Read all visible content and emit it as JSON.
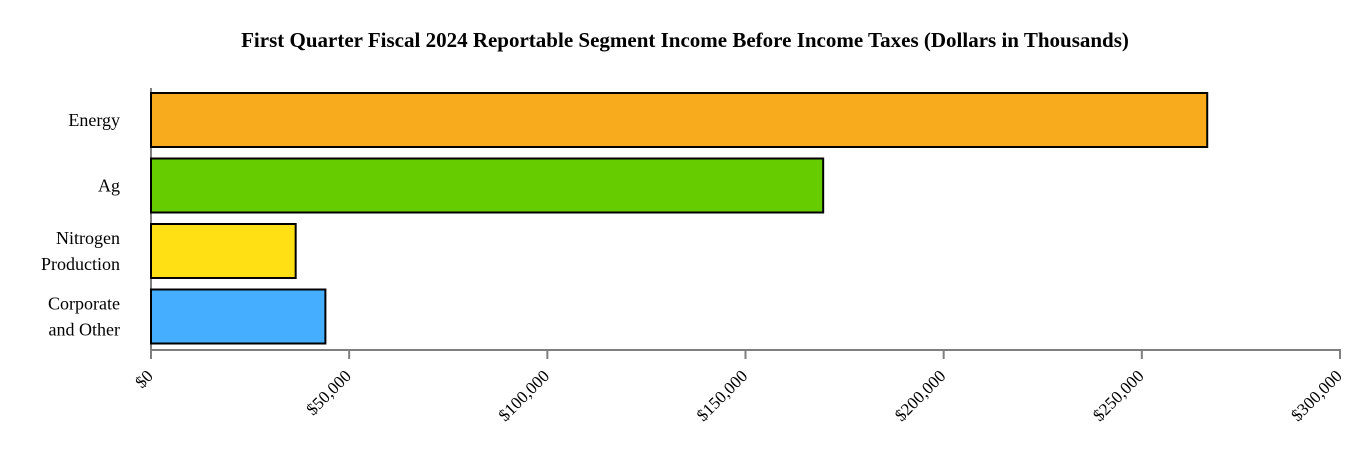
{
  "chart_data": {
    "type": "bar",
    "orientation": "horizontal",
    "title": "First Quarter Fiscal 2024 Reportable Segment Income Before Income Taxes (Dollars in Thousands)",
    "categories": [
      [
        "Energy"
      ],
      [
        "Ag"
      ],
      [
        "Nitrogen",
        "Production"
      ],
      [
        "Corporate",
        "and Other"
      ]
    ],
    "values": [
      266500,
      169600,
      36500,
      44000
    ],
    "colors": [
      "#F8AB1C",
      "#66CC00",
      "#FFE014",
      "#45AEFF"
    ],
    "xlim": [
      0,
      300000
    ],
    "x_ticks": [
      0,
      50000,
      100000,
      150000,
      200000,
      250000,
      300000
    ],
    "x_tick_labels": [
      "$0",
      "$50,000",
      "$100,000",
      "$150,000",
      "$200,000",
      "$250,000",
      "$300,000"
    ],
    "grid": false,
    "legend": "none",
    "xlabel": "",
    "ylabel": ""
  }
}
